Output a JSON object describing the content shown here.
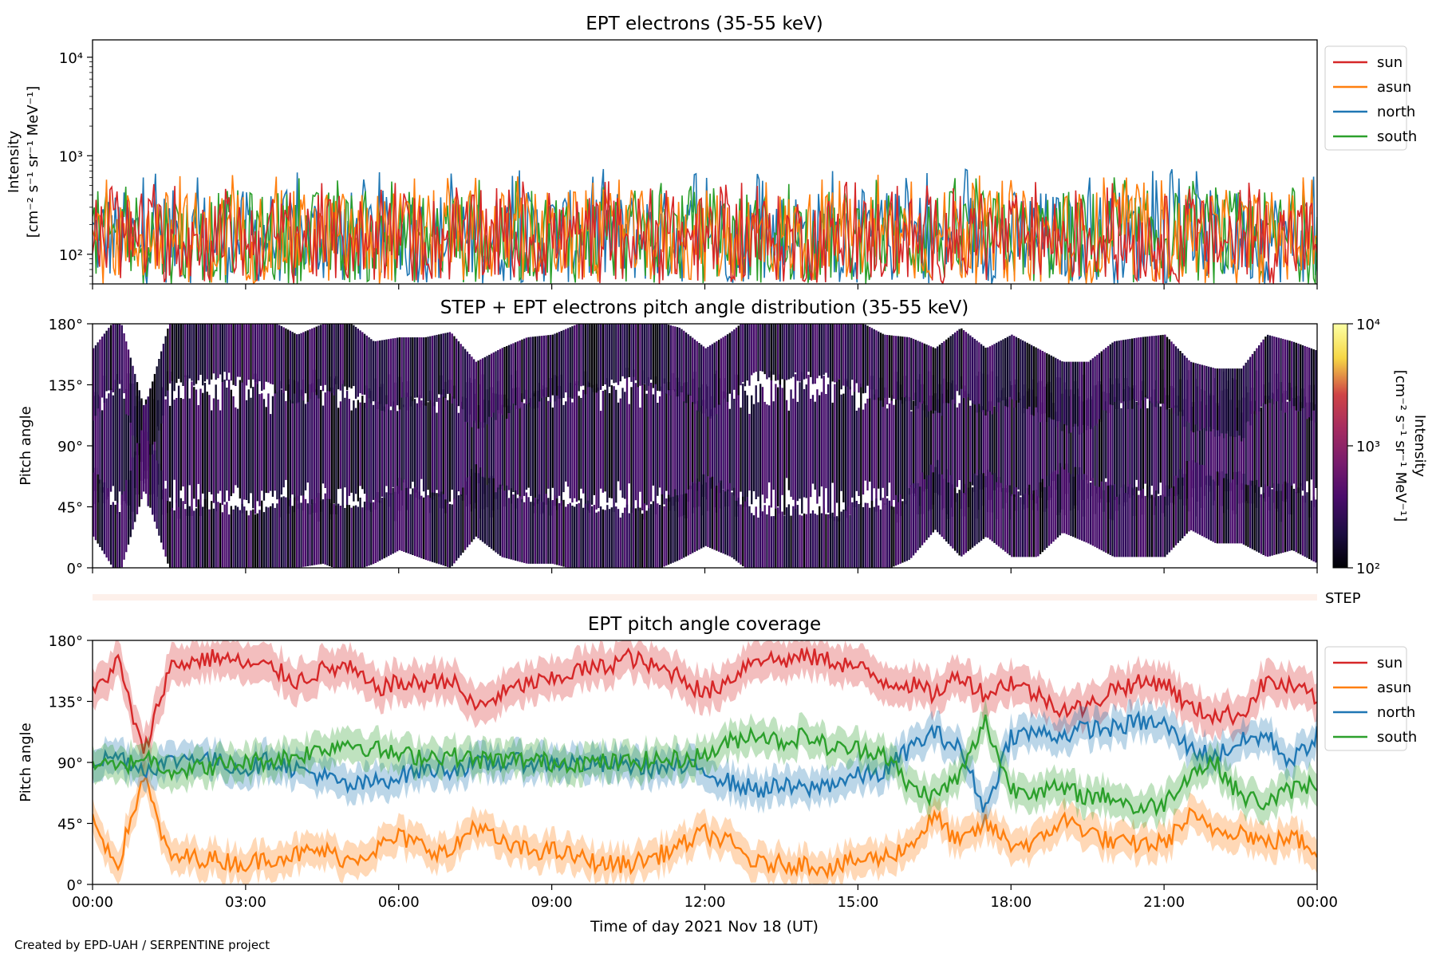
{
  "figure": {
    "credit": "Created by EPD-UAH / SERPENTINE project",
    "xlabel": "Time of day 2021 Nov 18 (UT)",
    "x_ticks": [
      "00:00",
      "03:00",
      "06:00",
      "09:00",
      "12:00",
      "15:00",
      "18:00",
      "21:00",
      "00:00"
    ],
    "x_range_hours": [
      0,
      24
    ]
  },
  "chart_data": [
    {
      "type": "line",
      "title": "EPT electrons (35-55 keV)",
      "ylabel": "Intensity",
      "ylabel_unit": "[cm⁻² s⁻¹ sr⁻¹ MeV⁻¹]",
      "yscale": "log",
      "ylim": [
        50,
        15000
      ],
      "y_ticks": [
        {
          "v": 100,
          "label": "10²"
        },
        {
          "v": 1000,
          "label": "10³"
        },
        {
          "v": 10000,
          "label": "10⁴"
        }
      ],
      "legend_position": "outside-right-top",
      "x_range_hours": [
        0,
        24
      ],
      "series": [
        {
          "name": "sun",
          "color": "#d62728",
          "typical_min": 50,
          "typical_max": 400,
          "peak": 550
        },
        {
          "name": "asun",
          "color": "#ff7f0e",
          "typical_min": 50,
          "typical_max": 450,
          "peak": 650
        },
        {
          "name": "north",
          "color": "#1f77b4",
          "typical_min": 50,
          "typical_max": 450,
          "peak": 740
        },
        {
          "name": "south",
          "color": "#2ca02c",
          "typical_min": 50,
          "typical_max": 450,
          "peak": 610
        }
      ],
      "draw_order": [
        "north",
        "south",
        "asun",
        "sun"
      ]
    },
    {
      "type": "heatmap",
      "title": "STEP + EPT electrons pitch angle distribution (35-55 keV)",
      "ylabel": "Pitch angle",
      "ylim": [
        0,
        180
      ],
      "y_ticks": [
        "0°",
        "45°",
        "90°",
        "135°",
        "180°"
      ],
      "x_range_hours": [
        0,
        24
      ],
      "colormap": "inferno",
      "colorbar": {
        "label": "Intensity",
        "unit": "[cm⁻² s⁻¹ sr⁻¹ MeV⁻¹]",
        "scale": "log",
        "range": [
          100,
          10000
        ],
        "ticks": [
          {
            "v": 100,
            "label": "10²"
          },
          {
            "v": 1000,
            "label": "10³"
          },
          {
            "v": 10000,
            "label": "10⁴"
          }
        ]
      },
      "step_strip_label": "STEP"
    },
    {
      "type": "line",
      "title": "EPT pitch angle coverage",
      "ylabel": "Pitch angle",
      "ylim": [
        0,
        180
      ],
      "y_ticks": [
        "0°",
        "45°",
        "90°",
        "135°",
        "180°"
      ],
      "x_range_hours": [
        0,
        24
      ],
      "legend_position": "outside-right-top",
      "x_knots": [
        0,
        0.5,
        1,
        1.5,
        2,
        2.5,
        3,
        3.5,
        4,
        4.5,
        5,
        5.5,
        6,
        6.5,
        7,
        7.5,
        8,
        8.5,
        9,
        9.5,
        10,
        10.5,
        11,
        11.5,
        12,
        12.5,
        13,
        13.5,
        14,
        14.5,
        15,
        15.5,
        16,
        16.5,
        17,
        17.5,
        18,
        18.5,
        19,
        19.5,
        20,
        20.5,
        21,
        21.5,
        22,
        22.5,
        23,
        23.5,
        24
      ],
      "series": [
        {
          "name": "sun",
          "color": "#d62728",
          "band_halfwidth": 14,
          "values": [
            140,
            165,
            95,
            160,
            165,
            168,
            162,
            160,
            150,
            158,
            160,
            145,
            148,
            148,
            152,
            130,
            140,
            148,
            150,
            158,
            160,
            168,
            160,
            155,
            140,
            152,
            168,
            165,
            168,
            165,
            160,
            150,
            148,
            140,
            155,
            140,
            150,
            140,
            130,
            130,
            145,
            148,
            150,
            130,
            125,
            125,
            150,
            145,
            138
          ]
        },
        {
          "name": "asun",
          "color": "#ff7f0e",
          "band_halfwidth": 12,
          "values": [
            45,
            15,
            80,
            20,
            20,
            18,
            15,
            20,
            22,
            25,
            18,
            25,
            35,
            28,
            22,
            45,
            30,
            25,
            25,
            20,
            15,
            15,
            20,
            28,
            38,
            30,
            15,
            15,
            15,
            12,
            18,
            20,
            28,
            50,
            30,
            45,
            30,
            30,
            48,
            40,
            30,
            30,
            30,
            50,
            40,
            40,
            30,
            35,
            25
          ]
        },
        {
          "name": "north",
          "color": "#1f77b4",
          "band_halfwidth": 12,
          "values": [
            90,
            95,
            85,
            90,
            95,
            90,
            85,
            92,
            85,
            80,
            72,
            75,
            80,
            85,
            85,
            88,
            90,
            90,
            90,
            90,
            88,
            88,
            86,
            86,
            85,
            75,
            70,
            72,
            70,
            75,
            80,
            82,
            100,
            112,
            100,
            55,
            110,
            112,
            110,
            115,
            115,
            120,
            118,
            100,
            95,
            105,
            110,
            90,
            110
          ]
        },
        {
          "name": "south",
          "color": "#2ca02c",
          "band_halfwidth": 12,
          "values": [
            90,
            85,
            95,
            85,
            85,
            88,
            90,
            92,
            95,
            100,
            105,
            100,
            95,
            95,
            95,
            92,
            92,
            92,
            90,
            90,
            90,
            90,
            92,
            92,
            95,
            105,
            112,
            105,
            110,
            100,
            100,
            98,
            72,
            65,
            80,
            120,
            70,
            70,
            70,
            65,
            65,
            55,
            60,
            82,
            90,
            65,
            60,
            70,
            75
          ]
        }
      ]
    }
  ]
}
